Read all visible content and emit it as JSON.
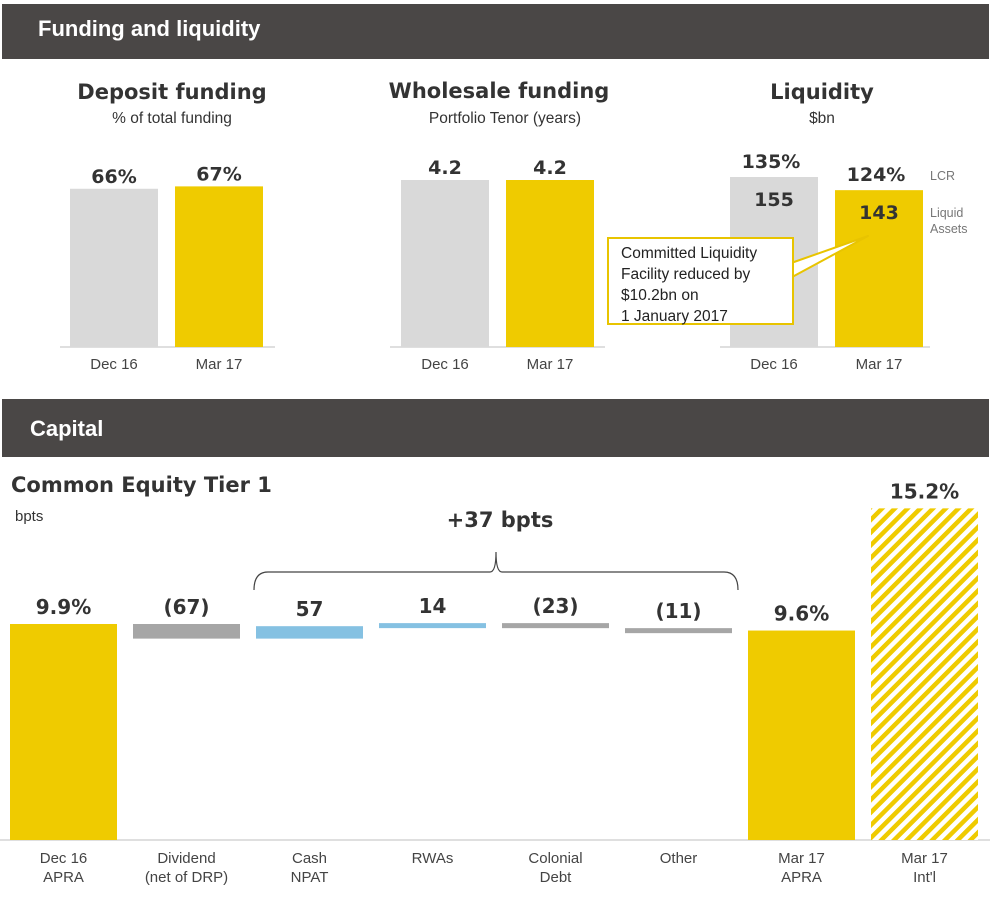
{
  "sections": {
    "funding_title": "Funding and liquidity",
    "capital_title": "Capital"
  },
  "deposit": {
    "title": "Deposit funding",
    "subtitle": "% of total funding"
  },
  "wholesale": {
    "title": "Wholesale funding",
    "subtitle": "Portfolio Tenor (years)"
  },
  "liquidity": {
    "title": "Liquidity",
    "subtitle": "$bn",
    "legend_lcr": "LCR",
    "legend_assets_1": "Liquid",
    "legend_assets_2": "Assets",
    "callout": [
      "Committed Liquidity",
      "Facility reduced by",
      "$10.2bn on",
      "1 January 2017"
    ]
  },
  "cet1": {
    "title": "Common Equity Tier 1",
    "subtitle": "bpts",
    "bracket_label": "+37 bpts"
  },
  "colors": {
    "yellow": "#efcb00",
    "grey": "#d9d9d9",
    "dark_grey": "#a6a6a6",
    "blue": "#85c1e2",
    "banner": "#4a4746"
  },
  "chart_data": [
    {
      "id": "deposit",
      "type": "bar",
      "title": "Deposit funding",
      "subtitle": "% of total funding",
      "categories": [
        "Dec 16",
        "Mar 17"
      ],
      "values": [
        66,
        67
      ],
      "labels": [
        "66%",
        "67%"
      ],
      "colors": [
        "grey",
        "yellow"
      ]
    },
    {
      "id": "wholesale",
      "type": "bar",
      "title": "Wholesale funding",
      "subtitle": "Portfolio Tenor (years)",
      "categories": [
        "Dec 16",
        "Mar 17"
      ],
      "values": [
        4.2,
        4.2
      ],
      "labels": [
        "4.2",
        "4.2"
      ],
      "colors": [
        "grey",
        "yellow"
      ]
    },
    {
      "id": "liquidity",
      "type": "bar",
      "title": "Liquidity",
      "subtitle": "$bn",
      "categories": [
        "Dec 16",
        "Mar 17"
      ],
      "series": [
        {
          "name": "Liquid Assets",
          "values": [
            155,
            143
          ],
          "labels": [
            "155",
            "143"
          ]
        },
        {
          "name": "LCR",
          "values": [
            135,
            124
          ],
          "labels": [
            "135%",
            "124%"
          ]
        }
      ],
      "colors": [
        "grey",
        "yellow"
      ]
    },
    {
      "id": "cet1",
      "type": "waterfall",
      "title": "Common Equity Tier 1",
      "ylabel": "bpts",
      "categories": [
        [
          "Dec 16",
          "APRA"
        ],
        [
          "Dividend",
          "(net of DRP)"
        ],
        [
          "Cash",
          "NPAT"
        ],
        [
          "RWAs"
        ],
        [
          "Colonial",
          "Debt"
        ],
        [
          "Other"
        ],
        [
          "Mar 17",
          "APRA"
        ],
        [
          "Mar 17",
          "Int'l"
        ]
      ],
      "values": [
        9.9,
        -0.67,
        0.57,
        0.14,
        -0.23,
        -0.11,
        9.6,
        15.2
      ],
      "labels": [
        "9.9%",
        "(67)",
        "57",
        "14",
        "(23)",
        "(11)",
        "9.6%",
        "15.2%"
      ],
      "kinds": [
        "total",
        "delta",
        "delta",
        "delta",
        "delta",
        "delta",
        "total",
        "total-hatched"
      ],
      "bracket": {
        "from": 2,
        "to": 5,
        "label": "+37 bpts"
      }
    }
  ]
}
